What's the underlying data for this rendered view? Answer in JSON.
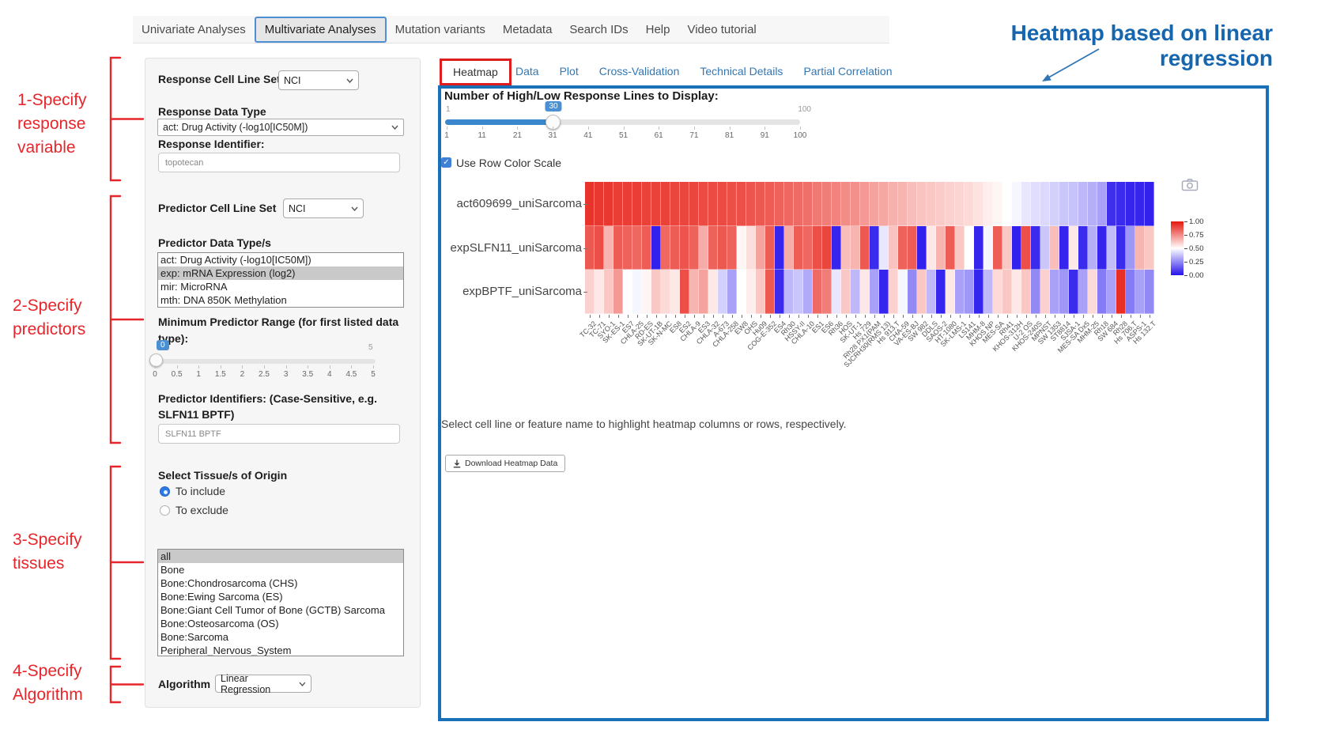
{
  "icons": {
    "check": "✓"
  },
  "nav": {
    "items": [
      {
        "label": "Univariate Analyses",
        "active": false
      },
      {
        "label": "Multivariate Analyses",
        "active": true
      },
      {
        "label": "Mutation variants",
        "active": false
      },
      {
        "label": "Metadata",
        "active": false
      },
      {
        "label": "Search IDs",
        "active": false
      },
      {
        "label": "Help",
        "active": false
      },
      {
        "label": "Video tutorial",
        "active": false
      }
    ]
  },
  "annotation": {
    "title": "Heatmap based on linear regression",
    "steps": [
      "1-Specify\nresponse\nvariable",
      "2-Specify\npredictors",
      "3-Specify\ntissues",
      "4-Specify\nAlgorithm"
    ]
  },
  "form": {
    "response_cell_line_set": {
      "label": "Response Cell Line Set",
      "value": "NCI"
    },
    "response_data_type": {
      "label": "Response Data Type",
      "value": "act: Drug Activity (-log10[IC50M])"
    },
    "response_identifier": {
      "label": "Response Identifier:",
      "value": "topotecan"
    },
    "predictor_cell_line_set": {
      "label": "Predictor Cell Line Set",
      "value": "NCI"
    },
    "predictor_data_types": {
      "label": "Predictor Data Type/s",
      "options": [
        "act: Drug Activity (-log10[IC50M])",
        "exp: mRNA Expression (log2)",
        "mir: MicroRNA",
        "mth: DNA 850K Methylation"
      ],
      "selected": "exp: mRNA Expression (log2)"
    },
    "min_predictor_range": {
      "label": "Minimum Predictor Range (for first listed data type):",
      "value": "0",
      "max_label": "5",
      "ticks": [
        "0",
        "0.5",
        "1",
        "1.5",
        "2",
        "2.5",
        "3",
        "3.5",
        "4",
        "4.5",
        "5"
      ]
    },
    "predictor_identifiers": {
      "label": "Predictor Identifiers: (Case-Sensitive, e.g. SLFN11 BPTF)",
      "value": "SLFN11 BPTF"
    },
    "tissue": {
      "label": "Select Tissue/s of Origin",
      "radio_include": "To include",
      "radio_exclude": "To exclude",
      "include_selected": true,
      "options": [
        "all",
        "Bone",
        "Bone:Chondrosarcoma (CHS)",
        "Bone:Ewing Sarcoma (ES)",
        "Bone:Giant Cell Tumor of Bone (GCTB) Sarcoma",
        "Bone:Osteosarcoma (OS)",
        "Bone:Sarcoma",
        "Peripheral_Nervous_System"
      ],
      "selected": "all"
    },
    "algorithm": {
      "label": "Algorithm",
      "value": "Linear Regression"
    }
  },
  "panel": {
    "tabs": [
      {
        "label": "Heatmap",
        "active": true
      },
      {
        "label": "Data",
        "active": false
      },
      {
        "label": "Plot",
        "active": false
      },
      {
        "label": "Cross-Validation",
        "active": false
      },
      {
        "label": "Technical Details",
        "active": false
      },
      {
        "label": "Partial Correlation",
        "active": false
      }
    ],
    "slider": {
      "label": "Number of High/Low Response Lines to Display:",
      "min_label": "1",
      "max_label": "100",
      "value": "30",
      "ticks": [
        "1",
        "11",
        "21",
        "31",
        "41",
        "51",
        "61",
        "71",
        "81",
        "91",
        "100"
      ]
    },
    "row_color_scale": {
      "label": "Use Row Color Scale",
      "checked": true
    },
    "hint": "Select cell line or feature name to highlight heatmap columns or rows, respectively.",
    "download_button": "Download Heatmap Data"
  },
  "chart_data": {
    "type": "heatmap",
    "rows": [
      "act609699_uniSarcoma",
      "expSLFN11_uniSarcoma",
      "expBPTF_uniSarcoma"
    ],
    "columns": [
      "TC-32",
      "TC-71",
      "SYO-1",
      "SK-ES-1",
      "ES7",
      "CHLA-25",
      "RD-ES",
      "SK-UT-1B",
      "SK-N-MC",
      "ES8",
      "ES2",
      "CHLA-9",
      "ES3",
      "CHLA-32",
      "A-673",
      "CHLA-258",
      "EW8",
      "OHS",
      "Hu09",
      "COG-E-352",
      "ES4",
      "Rh30",
      "HSSY-II",
      "CHLA-10",
      "ES1",
      "ES6",
      "Rh36",
      "HOS",
      "SK-UT-1",
      "Hs 729",
      "Rh28 PX1(PAM",
      "SJCRH30(RMS 13)",
      "Hs 913.T",
      "CHA-59",
      "VA-ES-BJ",
      "SW 982",
      "DDLS",
      "SAOS-2",
      "HT-1080",
      "SK-LMS-1",
      "LS141",
      "MHM-8",
      "KHOS NP",
      "MES-SA",
      "Rh41",
      "KHOS-312H",
      "U-2 OS",
      "KHOS-240S",
      "MPNST",
      "SW 1353",
      "ST8814",
      "SJSA-1",
      "MES-SA Dx5",
      "MHM-25",
      "Rh18",
      "SW 684",
      "Rh28",
      "Hs 706.T",
      "ASPS-1",
      "Hs 132.T"
    ],
    "values_normalized_per_row": true,
    "value_range": [
      0,
      1
    ],
    "values": [
      [
        0.94,
        0.93,
        0.93,
        0.92,
        0.92,
        0.92,
        0.91,
        0.91,
        0.91,
        0.9,
        0.9,
        0.9,
        0.89,
        0.89,
        0.89,
        0.88,
        0.88,
        0.87,
        0.86,
        0.85,
        0.84,
        0.83,
        0.82,
        0.81,
        0.79,
        0.78,
        0.77,
        0.75,
        0.74,
        0.72,
        0.7,
        0.69,
        0.67,
        0.66,
        0.64,
        0.63,
        0.62,
        0.61,
        0.6,
        0.59,
        0.58,
        0.56,
        0.54,
        0.52,
        0.5,
        0.48,
        0.45,
        0.43,
        0.42,
        0.4,
        0.38,
        0.37,
        0.35,
        0.33,
        0.3,
        0.06,
        0.05,
        0.04,
        0.04,
        0.03
      ],
      [
        0.86,
        0.88,
        0.66,
        0.85,
        0.84,
        0.83,
        0.85,
        0.03,
        0.83,
        0.85,
        0.87,
        0.84,
        0.68,
        0.84,
        0.86,
        0.84,
        0.52,
        0.57,
        0.7,
        0.85,
        0.04,
        0.68,
        0.85,
        0.83,
        0.88,
        0.9,
        0.04,
        0.64,
        0.66,
        0.86,
        0.05,
        0.45,
        0.63,
        0.84,
        0.85,
        0.03,
        0.55,
        0.66,
        0.85,
        0.62,
        0.5,
        0.04,
        0.48,
        0.85,
        0.62,
        0.03,
        0.88,
        0.05,
        0.38,
        0.64,
        0.04,
        0.55,
        0.05,
        0.33,
        0.04,
        0.36,
        0.05,
        0.28,
        0.66,
        0.62
      ],
      [
        0.6,
        0.55,
        0.62,
        0.72,
        0.5,
        0.48,
        0.52,
        0.62,
        0.58,
        0.55,
        0.88,
        0.66,
        0.7,
        0.55,
        0.4,
        0.3,
        0.5,
        0.54,
        0.62,
        0.86,
        0.05,
        0.35,
        0.38,
        0.32,
        0.82,
        0.78,
        0.45,
        0.62,
        0.35,
        0.55,
        0.3,
        0.04,
        0.6,
        0.48,
        0.25,
        0.62,
        0.35,
        0.04,
        0.55,
        0.3,
        0.28,
        0.04,
        0.35,
        0.58,
        0.62,
        0.55,
        0.62,
        0.25,
        0.6,
        0.3,
        0.28,
        0.05,
        0.3,
        0.58,
        0.22,
        0.3,
        0.95,
        0.22,
        0.3,
        0.25
      ]
    ],
    "colorscale": [
      {
        "at": 0,
        "color": "#2513eb"
      },
      {
        "at": 0.5,
        "color": "#ffffff"
      },
      {
        "at": 1,
        "color": "#e5180e"
      }
    ],
    "colorbar_ticks": [
      "1.00",
      "0.75",
      "0.50",
      "0.25",
      "0.00"
    ],
    "legend_position": "right",
    "title": ""
  }
}
